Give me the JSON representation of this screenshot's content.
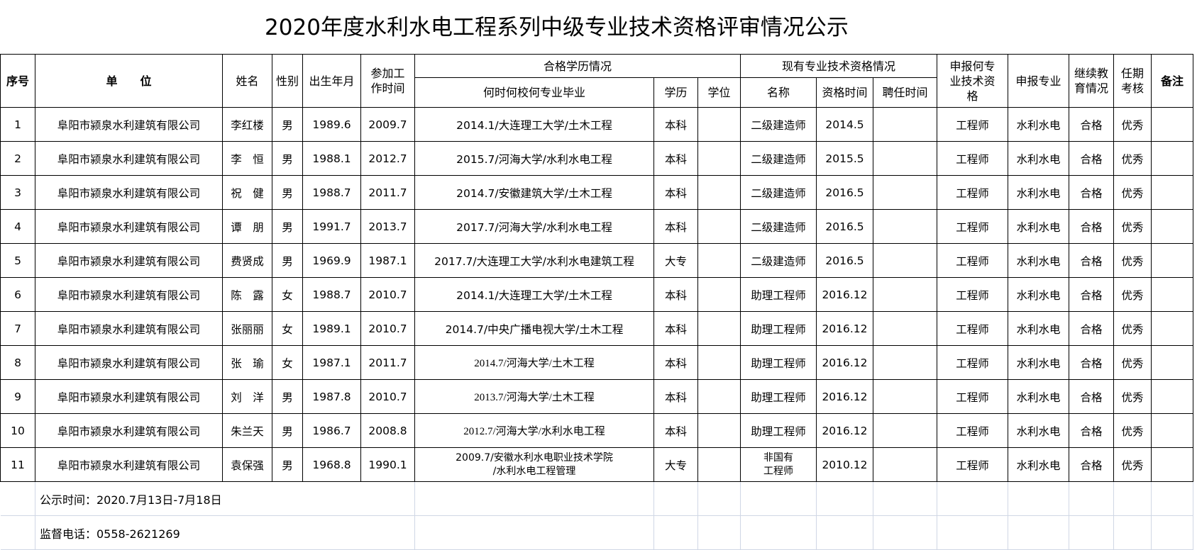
{
  "title": "2020年度水利水电工程系列中级专业技术资格评审情况公示",
  "headers": {
    "seq": "序号",
    "unit": "单　　位",
    "name": "姓名",
    "gender": "性别",
    "birth": "出生年月",
    "work_start": "参加工作时间",
    "edu_group": "合格学历情况",
    "edu_when": "何时何校何专业毕业",
    "edu_level": "学历",
    "degree": "学位",
    "qual_group": "现有专业技术资格情况",
    "qual_name": "名称",
    "qual_time": "资格时间",
    "hire_time": "聘任时间",
    "apply_qual": "申报何专业技术资格",
    "apply_major": "申报专业",
    "cont_edu": "继续教育情况",
    "term_eval": "任期考核",
    "remark": "备注"
  },
  "rows": [
    {
      "seq": "1",
      "unit": "阜阳市颍泉水利建筑有限公司",
      "name": "李红楼",
      "gender": "男",
      "birth": "1989.6",
      "work_start": "2009.7",
      "edu_when": "2014.1/大连理工大学/土木工程",
      "edu_level": "本科",
      "degree": "",
      "qual_name": "二级建造师",
      "qual_time": "2014.5",
      "hire_time": "",
      "apply_qual": "工程师",
      "apply_major": "水利水电",
      "cont_edu": "合格",
      "term_eval": "优秀",
      "remark": ""
    },
    {
      "seq": "2",
      "unit": "阜阳市颍泉水利建筑有限公司",
      "name": "李　恒",
      "gender": "男",
      "birth": "1988.1",
      "work_start": "2012.7",
      "edu_when": "2015.7/河海大学/水利水电工程",
      "edu_level": "本科",
      "degree": "",
      "qual_name": "二级建造师",
      "qual_time": "2015.5",
      "hire_time": "",
      "apply_qual": "工程师",
      "apply_major": "水利水电",
      "cont_edu": "合格",
      "term_eval": "优秀",
      "remark": ""
    },
    {
      "seq": "3",
      "unit": "阜阳市颍泉水利建筑有限公司",
      "name": "祝　健",
      "gender": "男",
      "birth": "1988.7",
      "work_start": "2011.7",
      "edu_when": "2014.7/安徽建筑大学/土木工程",
      "edu_level": "本科",
      "degree": "",
      "qual_name": "二级建造师",
      "qual_time": "2016.5",
      "hire_time": "",
      "apply_qual": "工程师",
      "apply_major": "水利水电",
      "cont_edu": "合格",
      "term_eval": "优秀",
      "remark": ""
    },
    {
      "seq": "4",
      "unit": "阜阳市颍泉水利建筑有限公司",
      "name": "谭　朋",
      "gender": "男",
      "birth": "1991.7",
      "work_start": "2013.7",
      "edu_when": "2017.7/河海大学/水利水电工程",
      "edu_level": "本科",
      "degree": "",
      "qual_name": "二级建造师",
      "qual_time": "2016.5",
      "hire_time": "",
      "apply_qual": "工程师",
      "apply_major": "水利水电",
      "cont_edu": "合格",
      "term_eval": "优秀",
      "remark": ""
    },
    {
      "seq": "5",
      "unit": "阜阳市颍泉水利建筑有限公司",
      "name": "费贤成",
      "gender": "男",
      "birth": "1969.9",
      "work_start": "1987.1",
      "edu_when": "2017.7/大连理工大学/水利水电建筑工程",
      "edu_level": "大专",
      "degree": "",
      "qual_name": "二级建造师",
      "qual_time": "2016.5",
      "hire_time": "",
      "apply_qual": "工程师",
      "apply_major": "水利水电",
      "cont_edu": "合格",
      "term_eval": "优秀",
      "remark": ""
    },
    {
      "seq": "6",
      "unit": "阜阳市颍泉水利建筑有限公司",
      "name": "陈　露",
      "gender": "女",
      "birth": "1988.7",
      "work_start": "2010.7",
      "edu_when": "2014.1/大连理工大学/土木工程",
      "edu_level": "本科",
      "degree": "",
      "qual_name": "助理工程师",
      "qual_time": "2016.12",
      "hire_time": "",
      "apply_qual": "工程师",
      "apply_major": "水利水电",
      "cont_edu": "合格",
      "term_eval": "优秀",
      "remark": ""
    },
    {
      "seq": "7",
      "unit": "阜阳市颍泉水利建筑有限公司",
      "name": "张丽丽",
      "gender": "女",
      "birth": "1989.1",
      "work_start": "2010.7",
      "edu_when": "2014.7/中央广播电视大学/土木工程",
      "edu_level": "本科",
      "degree": "",
      "qual_name": "助理工程师",
      "qual_time": "2016.12",
      "hire_time": "",
      "apply_qual": "工程师",
      "apply_major": "水利水电",
      "cont_edu": "合格",
      "term_eval": "优秀",
      "remark": ""
    },
    {
      "seq": "8",
      "unit": "阜阳市颍泉水利建筑有限公司",
      "name": "张　瑜",
      "gender": "女",
      "birth": "1987.1",
      "work_start": "2011.7",
      "edu_when": "2014.7/河海大学/土木工程",
      "edu_level": "本科",
      "degree": "",
      "qual_name": "助理工程师",
      "qual_time": "2016.12",
      "hire_time": "",
      "apply_qual": "工程师",
      "apply_major": "水利水电",
      "cont_edu": "合格",
      "term_eval": "优秀",
      "remark": ""
    },
    {
      "seq": "9",
      "unit": "阜阳市颍泉水利建筑有限公司",
      "name": "刘　洋",
      "gender": "男",
      "birth": "1987.8",
      "work_start": "2010.7",
      "edu_when": "2013.7/河海大学/土木工程",
      "edu_level": "本科",
      "degree": "",
      "qual_name": "助理工程师",
      "qual_time": "2016.12",
      "hire_time": "",
      "apply_qual": "工程师",
      "apply_major": "水利水电",
      "cont_edu": "合格",
      "term_eval": "优秀",
      "remark": ""
    },
    {
      "seq": "10",
      "unit": "阜阳市颍泉水利建筑有限公司",
      "name": "朱兰天",
      "gender": "男",
      "birth": "1986.7",
      "work_start": "2008.8",
      "edu_when": "2012.7/河海大学/水利水电工程",
      "edu_level": "本科",
      "degree": "",
      "qual_name": "助理工程师",
      "qual_time": "2016.12",
      "hire_time": "",
      "apply_qual": "工程师",
      "apply_major": "水利水电",
      "cont_edu": "合格",
      "term_eval": "优秀",
      "remark": ""
    },
    {
      "seq": "11",
      "unit": "阜阳市颍泉水利建筑有限公司",
      "name": "袁保强",
      "gender": "男",
      "birth": "1968.8",
      "work_start": "1990.1",
      "edu_when": "2009.7/安徽水利水电职业技术学院\n/水利水电工程管理",
      "edu_level": "大专",
      "degree": "",
      "qual_name": "非国有\n工程师",
      "qual_time": "2010.12",
      "hire_time": "",
      "apply_qual": "工程师",
      "apply_major": "水利水电",
      "cont_edu": "合格",
      "term_eval": "优秀",
      "remark": ""
    }
  ],
  "footer": {
    "notice_time": "公示时间：2020.7月13日-7月18日",
    "phone": "监督电话：0558-2621269"
  }
}
